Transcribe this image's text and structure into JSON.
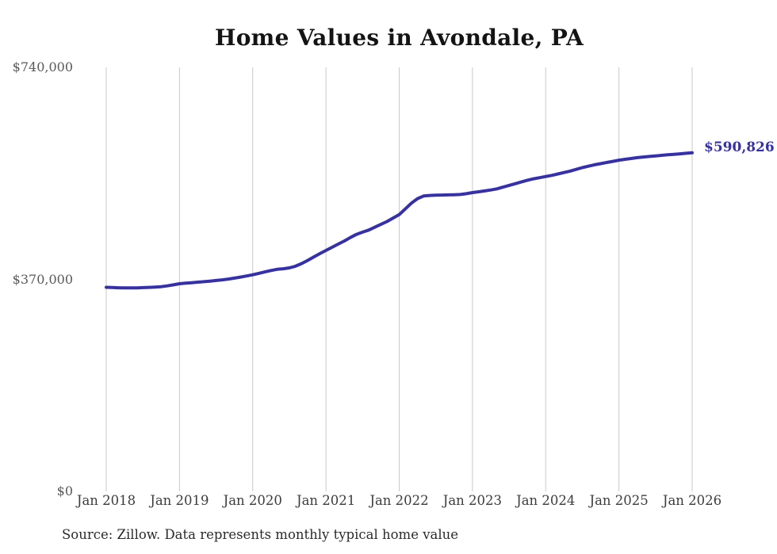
{
  "chart_data": {
    "type": "line",
    "title": "Home Values in Avondale, PA",
    "source": "Source: Zillow. Data represents monthly typical home value",
    "end_label": "$590,826",
    "final_value": 590826,
    "line_color": "#37329e",
    "grid_color": "#c9c9c9",
    "x_start": "Jan 2018",
    "x_end": "Jan 2026",
    "x_tick_labels": [
      "Jan 2018",
      "Jan 2019",
      "Jan 2020",
      "Jan 2021",
      "Jan 2022",
      "Jan 2023",
      "Jan 2024",
      "Jan 2025",
      "Jan 2026"
    ],
    "y_ticks": [
      {
        "value": 0,
        "label": "$0"
      },
      {
        "value": 370000,
        "label": "$370,000"
      },
      {
        "value": 740000,
        "label": "$740,000"
      }
    ],
    "ylim": [
      0,
      740000
    ],
    "grid": "vertical-only",
    "legend": "none",
    "series": [
      {
        "monthly_values": [
          356200,
          355800,
          355400,
          355100,
          355000,
          355200,
          355600,
          356000,
          356600,
          357300,
          358700,
          360400,
          362400,
          363300,
          364200,
          365100,
          366000,
          367000,
          368000,
          369200,
          370600,
          372200,
          374000,
          376000,
          378000,
          380500,
          383000,
          385500,
          387500,
          388500,
          390000,
          393000,
          397500,
          403000,
          409000,
          415000,
          420500,
          426000,
          431500,
          437000,
          443000,
          448500,
          452500,
          456000,
          461000,
          466000,
          471000,
          477000,
          483000,
          493000,
          503000,
          511000,
          515500,
          516500,
          517000,
          517200,
          517400,
          517700,
          518200,
          519500,
          521400,
          522800,
          524300,
          526000,
          528000,
          531000,
          534000,
          537000,
          540000,
          543000,
          545500,
          547500,
          549500,
          551500,
          554000,
          556500,
          559000,
          562000,
          565000,
          567500,
          570000,
          572000,
          574000,
          576000,
          578000,
          579500,
          581000,
          582500,
          583500,
          584500,
          585500,
          586500,
          587500,
          588300,
          589100,
          590000,
          590826
        ]
      }
    ]
  }
}
